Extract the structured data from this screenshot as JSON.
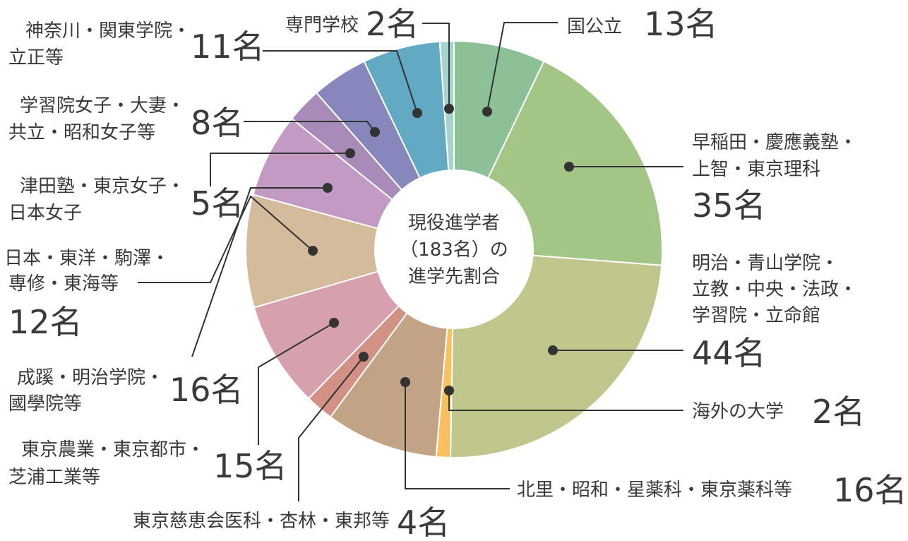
{
  "chart_data": {
    "type": "pie",
    "title": "",
    "center_label": [
      "現役進学者",
      "（183名）の",
      "進学先割合"
    ],
    "total_label": "183名",
    "slices": [
      {
        "lines": [
          "国公立"
        ],
        "count": "13名",
        "value": 13,
        "color": "#8cc096"
      },
      {
        "lines": [
          "早稲田・慶應義塾・",
          "上智・東京理科"
        ],
        "count": "35名",
        "value": 35,
        "color": "#a3c586"
      },
      {
        "lines": [
          "明治・青山学院・",
          "立教・中央・法政・",
          "学習院・立命館"
        ],
        "count": "44名",
        "value": 44,
        "color": "#c0c68c"
      },
      {
        "lines": [
          "海外の大学"
        ],
        "count": "2名",
        "value": 2,
        "color": "#f8c05e"
      },
      {
        "lines": [
          "北里・昭和・星薬科・東京薬科等"
        ],
        "count": "16名",
        "value": 16,
        "color": "#c3a386"
      },
      {
        "lines": [
          "東京慈恵会医科・杏林・東邦等"
        ],
        "count": "4名",
        "value": 4,
        "color": "#d39084"
      },
      {
        "lines": [
          "東京農業・東京都市・",
          "芝浦工業等"
        ],
        "count": "15名",
        "value": 15,
        "color": "#d6a0ad"
      },
      {
        "lines": [
          "成蹊・明治学院・",
          "國學院等"
        ],
        "count": "16名",
        "value": 16,
        "color": "#d3bb9b"
      },
      {
        "lines": [
          "日本・東洋・駒澤・",
          "専修・東海等"
        ],
        "count": "12名",
        "value": 12,
        "color": "#c39ac4"
      },
      {
        "lines": [
          "津田塾・東京女子・",
          "日本女子"
        ],
        "count": "5名",
        "value": 5,
        "color": "#a98bb9"
      },
      {
        "lines": [
          "学習院女子・大妻・",
          "共立・昭和女子等"
        ],
        "count": "8名",
        "value": 8,
        "color": "#8787be"
      },
      {
        "lines": [
          "神奈川・関東学院・",
          "立正等"
        ],
        "count": "11名",
        "value": 11,
        "color": "#62a9c3"
      },
      {
        "lines": [
          "専門学校"
        ],
        "count": "2名",
        "value": 2,
        "color": "#a6d3d0"
      }
    ]
  }
}
